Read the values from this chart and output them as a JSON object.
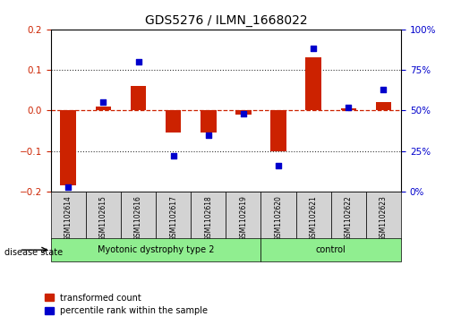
{
  "title": "GDS5276 / ILMN_1668022",
  "samples": [
    "GSM1102614",
    "GSM1102615",
    "GSM1102616",
    "GSM1102617",
    "GSM1102618",
    "GSM1102619",
    "GSM1102620",
    "GSM1102621",
    "GSM1102622",
    "GSM1102623"
  ],
  "transformed_count": [
    -0.185,
    0.01,
    0.06,
    -0.055,
    -0.055,
    -0.01,
    -0.1,
    0.13,
    0.005,
    0.02
  ],
  "percentile_rank": [
    3,
    55,
    80,
    22,
    35,
    48,
    16,
    88,
    52,
    63
  ],
  "groups": [
    {
      "label": "Myotonic dystrophy type 2",
      "start": 0,
      "end": 6,
      "color": "#90EE90"
    },
    {
      "label": "control",
      "start": 6,
      "end": 10,
      "color": "#90EE90"
    }
  ],
  "ylim_left": [
    -0.2,
    0.2
  ],
  "ylim_right": [
    0,
    100
  ],
  "yticks_left": [
    -0.2,
    -0.1,
    0.0,
    0.1,
    0.2
  ],
  "yticks_right": [
    0,
    25,
    50,
    75,
    100
  ],
  "yticklabels_right": [
    "0%",
    "25%",
    "50%",
    "75%",
    "100%"
  ],
  "bar_color": "#CC2200",
  "dot_color": "#0000CC",
  "hline_color": "#CC2200",
  "dotted_line_color": "#333333",
  "disease_state_label": "disease state",
  "legend_items": [
    {
      "label": "transformed count",
      "color": "#CC2200"
    },
    {
      "label": "percentile rank within the sample",
      "color": "#0000CC"
    }
  ]
}
